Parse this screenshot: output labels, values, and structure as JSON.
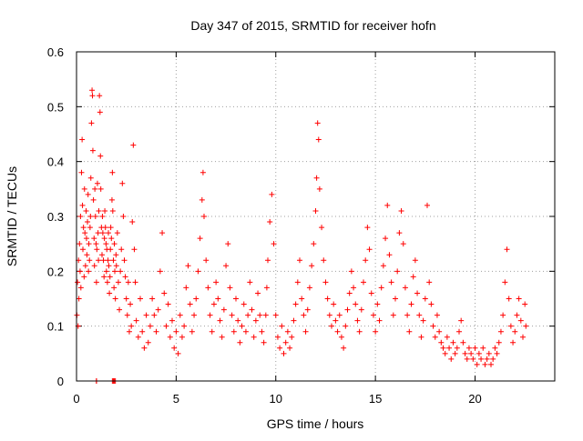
{
  "chart_data": {
    "type": "scatter",
    "title": "Day 347 of 2015, SRMTID for receiver hofn",
    "xlabel": "GPS time / hours",
    "ylabel": "SRMTID / TECUs",
    "xlim": [
      0,
      24
    ],
    "ylim": [
      0,
      0.6
    ],
    "xticks": [
      0,
      5,
      10,
      15,
      20
    ],
    "xtick_labels": [
      "0",
      "5",
      "10",
      "15",
      "20"
    ],
    "yticks": [
      0,
      0.1,
      0.2,
      0.3,
      0.4,
      0.5,
      0.6
    ],
    "ytick_labels": [
      "0",
      "0.1",
      "0.2",
      "0.3",
      "0.4",
      "0.5",
      "0.6"
    ],
    "grid": true,
    "marker": "plus",
    "color": "#ff0000",
    "series": [
      {
        "name": "SRMTID",
        "x": [
          0.02,
          0.05,
          0.08,
          0.1,
          0.12,
          0.15,
          0.18,
          0.2,
          0.22,
          0.25,
          0.28,
          0.3,
          0.32,
          0.35,
          0.38,
          0.4,
          0.42,
          0.45,
          0.48,
          0.5,
          0.52,
          0.55,
          0.58,
          0.6,
          0.62,
          0.65,
          0.68,
          0.7,
          0.72,
          0.75,
          0.78,
          0.8,
          0.82,
          0.85,
          0.88,
          0.9,
          0.92,
          0.95,
          0.98,
          1.0,
          1.0,
          1.02,
          1.05,
          1.08,
          1.1,
          1.12,
          1.15,
          1.18,
          1.2,
          1.22,
          1.25,
          1.28,
          1.3,
          1.32,
          1.35,
          1.38,
          1.4,
          1.42,
          1.45,
          1.48,
          1.5,
          1.52,
          1.55,
          1.58,
          1.6,
          1.62,
          1.65,
          1.68,
          1.7,
          1.72,
          1.75,
          1.78,
          1.8,
          1.82,
          1.85,
          1.88,
          1.9,
          1.92,
          1.95,
          1.98,
          2.0,
          2.05,
          2.1,
          2.15,
          2.2,
          2.25,
          2.3,
          2.35,
          2.4,
          2.45,
          2.5,
          2.55,
          2.6,
          2.65,
          2.7,
          2.75,
          2.8,
          2.85,
          2.9,
          2.95,
          3.0,
          3.1,
          3.2,
          3.3,
          3.4,
          3.5,
          3.6,
          3.7,
          3.8,
          3.9,
          4.0,
          4.1,
          4.2,
          4.3,
          4.4,
          4.5,
          4.6,
          4.7,
          4.8,
          4.9,
          5.0,
          5.1,
          5.2,
          5.3,
          5.4,
          5.5,
          5.6,
          5.7,
          5.8,
          5.9,
          6.0,
          6.1,
          6.2,
          6.3,
          6.35,
          6.4,
          6.5,
          6.6,
          6.7,
          6.8,
          6.9,
          7.0,
          7.1,
          7.2,
          7.3,
          7.4,
          7.5,
          7.6,
          7.7,
          7.8,
          7.9,
          8.0,
          8.1,
          8.2,
          8.3,
          8.4,
          8.5,
          8.6,
          8.7,
          8.8,
          8.9,
          9.0,
          9.1,
          9.2,
          9.3,
          9.4,
          9.5,
          9.55,
          9.6,
          9.7,
          9.8,
          9.9,
          10.0,
          10.1,
          10.2,
          10.3,
          10.4,
          10.5,
          10.6,
          10.7,
          10.8,
          10.9,
          11.0,
          11.1,
          11.2,
          11.3,
          11.4,
          11.5,
          11.6,
          11.7,
          11.8,
          11.9,
          12.0,
          12.05,
          12.1,
          12.15,
          12.2,
          12.3,
          12.4,
          12.5,
          12.6,
          12.7,
          12.8,
          12.9,
          13.0,
          13.1,
          13.2,
          13.3,
          13.4,
          13.5,
          13.6,
          13.7,
          13.8,
          13.9,
          14.0,
          14.1,
          14.2,
          14.3,
          14.4,
          14.5,
          14.6,
          14.7,
          14.8,
          14.9,
          15.0,
          15.1,
          15.2,
          15.3,
          15.4,
          15.5,
          15.6,
          15.7,
          15.8,
          15.9,
          16.0,
          16.1,
          16.2,
          16.3,
          16.4,
          16.5,
          16.6,
          16.7,
          16.8,
          16.9,
          17.0,
          17.1,
          17.2,
          17.3,
          17.4,
          17.5,
          17.6,
          17.7,
          17.8,
          17.9,
          18.0,
          18.1,
          18.2,
          18.3,
          18.4,
          18.5,
          18.6,
          18.7,
          18.8,
          18.9,
          19.0,
          19.1,
          19.2,
          19.3,
          19.4,
          19.5,
          19.6,
          19.7,
          19.8,
          19.9,
          20.0,
          20.1,
          20.2,
          20.3,
          20.4,
          20.5,
          20.6,
          20.7,
          20.8,
          20.9,
          21.0,
          21.1,
          21.2,
          21.3,
          21.4,
          21.5,
          21.6,
          21.7,
          21.8,
          21.9,
          22.0,
          22.1,
          22.2,
          22.3,
          22.4,
          22.5,
          22.55,
          1.0,
          1.8,
          1.85,
          1.9,
          1.95
        ],
        "y": [
          0.12,
          0.18,
          0.1,
          0.22,
          0.15,
          0.25,
          0.2,
          0.3,
          0.17,
          0.38,
          0.44,
          0.32,
          0.24,
          0.28,
          0.19,
          0.35,
          0.27,
          0.21,
          0.31,
          0.26,
          0.23,
          0.29,
          0.34,
          0.2,
          0.25,
          0.22,
          0.28,
          0.3,
          0.37,
          0.47,
          0.53,
          0.52,
          0.42,
          0.33,
          0.26,
          0.21,
          0.35,
          0.3,
          0.25,
          0.18,
          0.0,
          0.24,
          0.36,
          0.27,
          0.22,
          0.31,
          0.52,
          0.49,
          0.41,
          0.35,
          0.28,
          0.23,
          0.3,
          0.27,
          0.22,
          0.19,
          0.26,
          0.31,
          0.28,
          0.25,
          0.2,
          0.24,
          0.18,
          0.22,
          0.27,
          0.21,
          0.16,
          0.19,
          0.24,
          0.28,
          0.26,
          0.33,
          0.38,
          0.31,
          0.22,
          0.17,
          0.25,
          0.2,
          0.15,
          0.23,
          0.21,
          0.27,
          0.18,
          0.13,
          0.2,
          0.24,
          0.36,
          0.3,
          0.22,
          0.19,
          0.15,
          0.12,
          0.18,
          0.09,
          0.14,
          0.1,
          0.29,
          0.43,
          0.24,
          0.18,
          0.11,
          0.08,
          0.15,
          0.09,
          0.06,
          0.12,
          0.07,
          0.1,
          0.15,
          0.12,
          0.09,
          0.13,
          0.2,
          0.27,
          0.16,
          0.1,
          0.14,
          0.08,
          0.11,
          0.06,
          0.09,
          0.05,
          0.12,
          0.08,
          0.1,
          0.17,
          0.21,
          0.14,
          0.09,
          0.12,
          0.15,
          0.2,
          0.26,
          0.33,
          0.38,
          0.3,
          0.22,
          0.17,
          0.12,
          0.09,
          0.14,
          0.18,
          0.15,
          0.11,
          0.08,
          0.13,
          0.21,
          0.25,
          0.17,
          0.12,
          0.09,
          0.15,
          0.11,
          0.07,
          0.1,
          0.14,
          0.09,
          0.12,
          0.18,
          0.13,
          0.08,
          0.11,
          0.16,
          0.12,
          0.09,
          0.07,
          0.12,
          0.17,
          0.22,
          0.29,
          0.34,
          0.25,
          0.12,
          0.08,
          0.06,
          0.1,
          0.05,
          0.07,
          0.09,
          0.06,
          0.08,
          0.11,
          0.14,
          0.18,
          0.22,
          0.15,
          0.12,
          0.09,
          0.13,
          0.17,
          0.21,
          0.25,
          0.31,
          0.37,
          0.47,
          0.44,
          0.35,
          0.28,
          0.22,
          0.18,
          0.15,
          0.12,
          0.1,
          0.14,
          0.11,
          0.09,
          0.12,
          0.08,
          0.06,
          0.1,
          0.13,
          0.16,
          0.2,
          0.17,
          0.14,
          0.11,
          0.09,
          0.13,
          0.18,
          0.22,
          0.28,
          0.24,
          0.16,
          0.12,
          0.09,
          0.14,
          0.11,
          0.17,
          0.21,
          0.26,
          0.32,
          0.23,
          0.18,
          0.12,
          0.15,
          0.2,
          0.27,
          0.31,
          0.25,
          0.17,
          0.12,
          0.09,
          0.14,
          0.19,
          0.22,
          0.16,
          0.12,
          0.08,
          0.11,
          0.15,
          0.32,
          0.18,
          0.14,
          0.1,
          0.08,
          0.12,
          0.09,
          0.07,
          0.06,
          0.05,
          0.08,
          0.06,
          0.04,
          0.07,
          0.05,
          0.06,
          0.09,
          0.11,
          0.07,
          0.05,
          0.04,
          0.06,
          0.05,
          0.04,
          0.06,
          0.03,
          0.05,
          0.04,
          0.06,
          0.03,
          0.04,
          0.05,
          0.03,
          0.04,
          0.06,
          0.05,
          0.07,
          0.09,
          0.12,
          0.18,
          0.24,
          0.15,
          0.1,
          0.07,
          0.09,
          0.12,
          0.15,
          0.11,
          0.08,
          0.14,
          0.1,
          0.0,
          0.0,
          0.0,
          0.0,
          0.0
        ]
      }
    ]
  }
}
